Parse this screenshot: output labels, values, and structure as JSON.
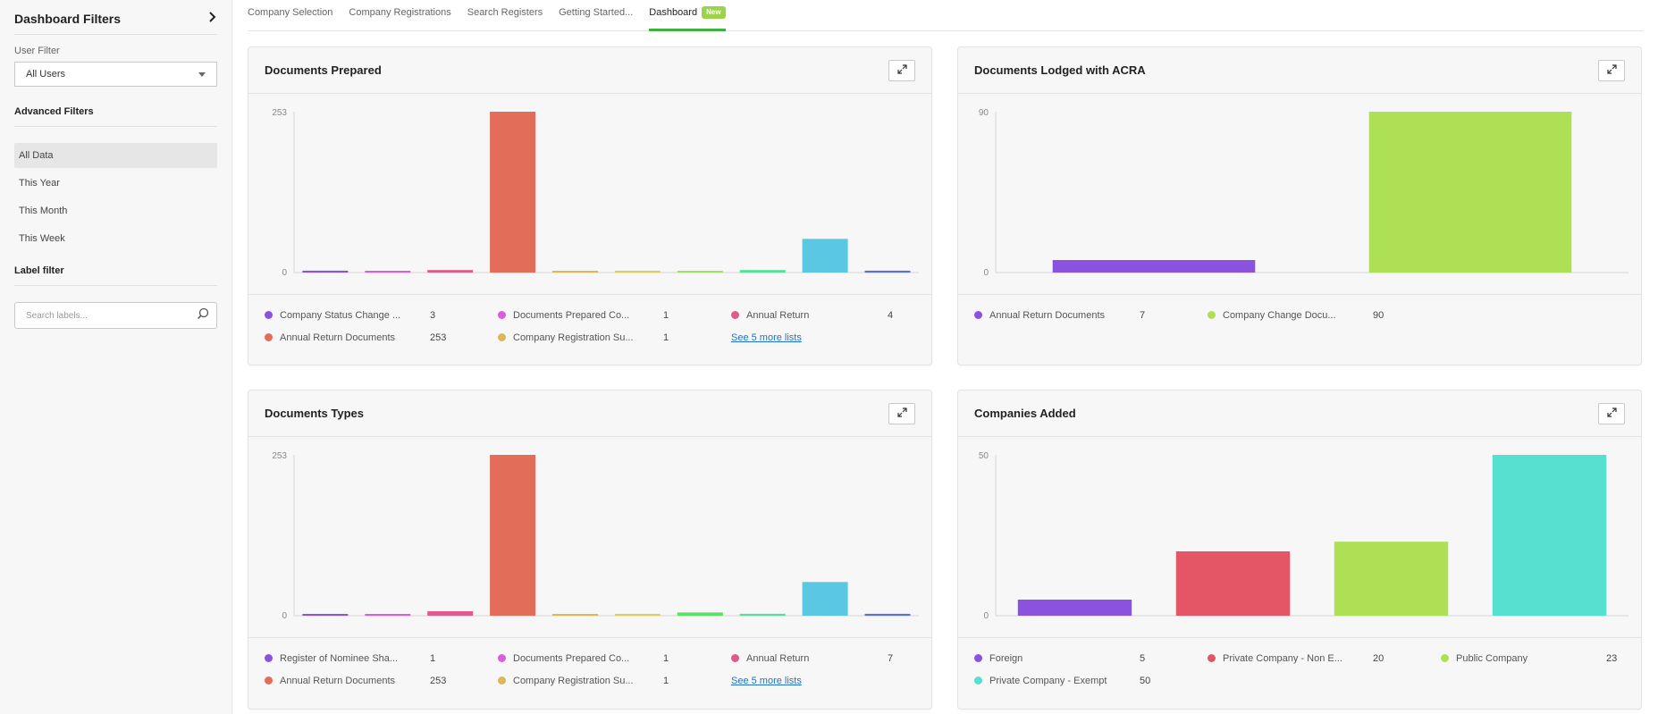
{
  "sidebar": {
    "title": "Dashboard Filters",
    "user_filter_label": "User Filter",
    "user_filter_value": "All Users",
    "advanced_filters": "Advanced Filters",
    "options": [
      "All Data",
      "This Year",
      "This Month",
      "This Week"
    ],
    "active_option": "All Data",
    "label_filter": "Label filter",
    "search_placeholder": "Search labels..."
  },
  "tabs": [
    {
      "label": "Company Selection"
    },
    {
      "label": "Company Registrations"
    },
    {
      "label": "Search Registers"
    },
    {
      "label": "Getting Started..."
    },
    {
      "label": "Dashboard",
      "badge": "New",
      "active": true
    }
  ],
  "cards": [
    {
      "title": "Documents Prepared",
      "legend": [
        {
          "label": "Company Status Change ...",
          "value": "3",
          "color": "#8b52e0"
        },
        {
          "label": "Documents Prepared Co...",
          "value": "1",
          "color": "#dc5cdc"
        },
        {
          "label": "Annual Return",
          "value": "4",
          "color": "#e05a8e"
        },
        {
          "label": "Annual Return Documents",
          "value": "253",
          "color": "#e26d58"
        },
        {
          "label": "Company Registration Su...",
          "value": "1",
          "color": "#dbb85a"
        }
      ],
      "more_link": "See 5 more lists"
    },
    {
      "title": "Documents Lodged with ACRA",
      "legend": [
        {
          "label": "Annual Return Documents",
          "value": "7",
          "color": "#8b52e0"
        },
        {
          "label": "Company Change Docu...",
          "value": "90",
          "color": "#aee055"
        }
      ]
    },
    {
      "title": "Documents Types",
      "legend": [
        {
          "label": "Register of Nominee Sha...",
          "value": "1",
          "color": "#8b52e0"
        },
        {
          "label": "Documents Prepared Co...",
          "value": "1",
          "color": "#dc5cdc"
        },
        {
          "label": "Annual Return",
          "value": "7",
          "color": "#e05a8e"
        },
        {
          "label": "Annual Return Documents",
          "value": "253",
          "color": "#e26d58"
        },
        {
          "label": "Company Registration Su...",
          "value": "1",
          "color": "#dbb85a"
        }
      ],
      "more_link": "See 5 more lists"
    },
    {
      "title": "Companies Added",
      "legend": [
        {
          "label": "Foreign",
          "value": "5",
          "color": "#8b52e0"
        },
        {
          "label": "Private Company - Non E...",
          "value": "20",
          "color": "#e45665"
        },
        {
          "label": "Public Company",
          "value": "23",
          "color": "#aee055"
        },
        {
          "label": "Private Company - Exempt",
          "value": "50",
          "color": "#55e0cf"
        }
      ]
    }
  ],
  "chart_data": [
    {
      "type": "bar",
      "ylim": [
        0,
        253
      ],
      "yticks": [
        "253",
        "0"
      ],
      "values": [
        3,
        1,
        4,
        253,
        1,
        1,
        1,
        4,
        53,
        3
      ],
      "colors": [
        "#8b52e0",
        "#dc5cdc",
        "#e05a8e",
        "#e26d58",
        "#dbb85a",
        "#d8d25c",
        "#9ee06a",
        "#55e09a",
        "#5ac8e2",
        "#5b6fe0"
      ]
    },
    {
      "type": "bar",
      "ylim": [
        0,
        90
      ],
      "yticks": [
        "90",
        "0"
      ],
      "values": [
        7,
        90
      ],
      "colors": [
        "#8b52e0",
        "#aee055"
      ]
    },
    {
      "type": "bar",
      "ylim": [
        0,
        253
      ],
      "yticks": [
        "253",
        "0"
      ],
      "values": [
        1,
        1,
        7,
        253,
        1,
        1,
        5,
        3,
        53,
        3
      ],
      "colors": [
        "#8b52e0",
        "#dc5cdc",
        "#e05a8e",
        "#e26d58",
        "#dbb85a",
        "#d8d25c",
        "#5ae062",
        "#55e09a",
        "#5ac8e2",
        "#5b6fe0"
      ]
    },
    {
      "type": "bar",
      "ylim": [
        0,
        50
      ],
      "yticks": [
        "50",
        "0"
      ],
      "values": [
        5,
        20,
        23,
        50
      ],
      "colors": [
        "#8b52e0",
        "#e45665",
        "#aee055",
        "#55e0cf"
      ]
    }
  ]
}
